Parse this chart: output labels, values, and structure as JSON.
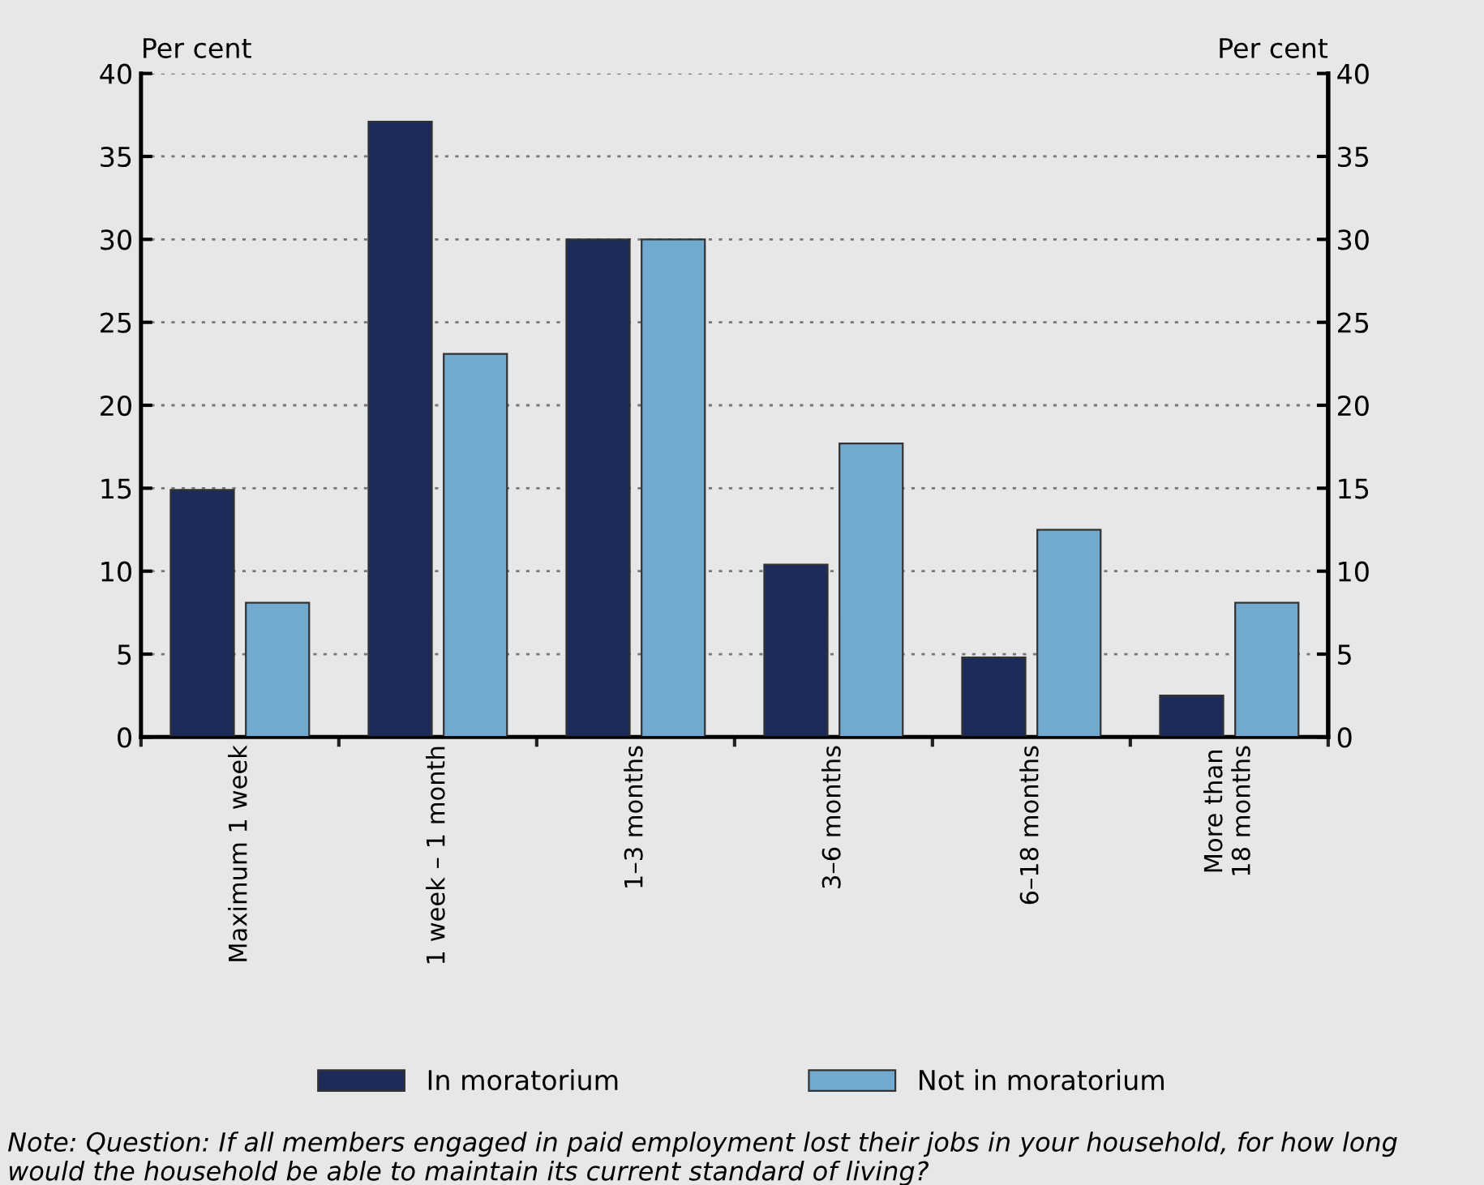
{
  "chart_data": {
    "type": "bar",
    "categories": [
      "Maximum 1 week",
      "1 week – 1 month",
      "1–3 months",
      "3–6 months",
      "6–18 months",
      "More than\n18 months"
    ],
    "series": [
      {
        "name": "In moratorium",
        "color": "#1c2b57",
        "values": [
          14.9,
          37.1,
          30,
          10.4,
          4.8,
          2.5
        ]
      },
      {
        "name": "Not in moratorium",
        "color": "#71a9cf",
        "values": [
          8.1,
          23.1,
          30,
          17.7,
          12.5,
          8.1
        ]
      }
    ],
    "ylabel": "Per cent",
    "y2label": "Per cent",
    "ylim": [
      0,
      40
    ],
    "yticks": [
      0,
      5,
      10,
      15,
      20,
      25,
      30,
      35,
      40
    ],
    "y2lim": [
      0,
      40
    ],
    "y2ticks": [
      0,
      5,
      10,
      15,
      20,
      25,
      30,
      35,
      40
    ],
    "grid": "y",
    "legend": "bottom",
    "annotations": [
      "Note: Question: If all members engaged in paid employment lost their jobs in your household, for how long would the household be able to maintain its current standard of living?"
    ]
  }
}
